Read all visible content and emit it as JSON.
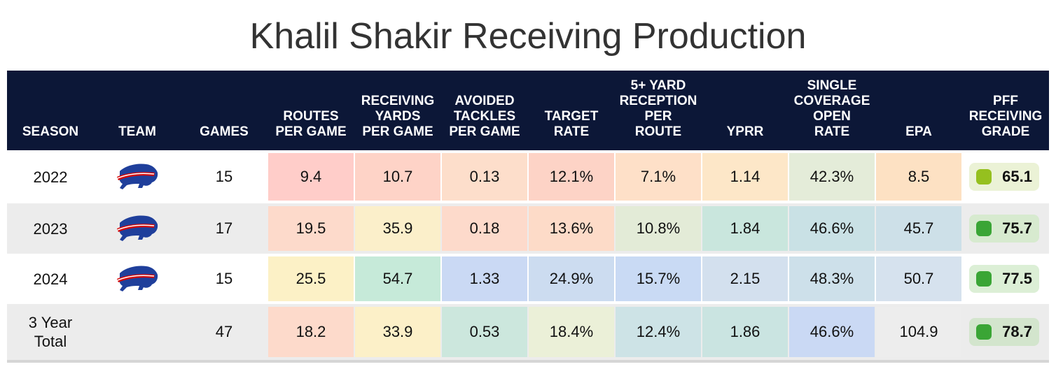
{
  "chart_data": {
    "type": "table",
    "title": "Khalil Shakir Receiving Production",
    "columns": [
      {
        "key": "season",
        "label": "SEASON"
      },
      {
        "key": "team",
        "label": "TEAM"
      },
      {
        "key": "games",
        "label": "GAMES"
      },
      {
        "key": "routes",
        "label": "ROUTES\nPER GAME"
      },
      {
        "key": "yards",
        "label": "RECEIVING\nYARDS\nPER GAME"
      },
      {
        "key": "avoided",
        "label": "AVOIDED\nTACKLES\nPER GAME"
      },
      {
        "key": "target",
        "label": "TARGET\nRATE"
      },
      {
        "key": "fiveplus",
        "label": "5+ YARD\nRECEPTION\nPER\nROUTE"
      },
      {
        "key": "yprr",
        "label": "YPRR"
      },
      {
        "key": "single",
        "label": "SINGLE\nCOVERAGE\nOPEN\nRATE"
      },
      {
        "key": "epa",
        "label": "EPA"
      },
      {
        "key": "grade",
        "label": "PFF\nRECEIVING\nGRADE"
      }
    ],
    "rows": [
      {
        "season": "2022",
        "team_logo": "bills-logo",
        "games": "15",
        "values": [
          "9.4",
          "10.7",
          "0.13",
          "12.1%",
          "7.1%",
          "1.14",
          "42.3%",
          "8.5"
        ],
        "colors": [
          "#ffcdc9",
          "#fed3c7",
          "#fddecb",
          "#fdd3c6",
          "#fee0c8",
          "#fde7c8",
          "#e4ecd9",
          "#fde1c3"
        ],
        "grade": "65.1",
        "grade_color": "#95c01f",
        "grade_bg": "#ebf2d6"
      },
      {
        "season": "2023",
        "team_logo": "bills-logo",
        "games": "17",
        "values": [
          "19.5",
          "35.9",
          "0.18",
          "13.6%",
          "10.8%",
          "1.84",
          "46.6%",
          "45.7"
        ],
        "colors": [
          "#fddacb",
          "#fbefca",
          "#fddacb",
          "#fddbc8",
          "#e3ebd7",
          "#c9e6dd",
          "#c9e1e5",
          "#cde0e8"
        ],
        "grade": "75.7",
        "grade_color": "#3aa535",
        "grade_bg": "#d7eacf"
      },
      {
        "season": "2024",
        "team_logo": "bills-logo",
        "games": "15",
        "values": [
          "25.5",
          "54.7",
          "1.33",
          "24.9%",
          "15.7%",
          "2.15",
          "48.3%",
          "50.7"
        ],
        "colors": [
          "#fcf1c6",
          "#c6ead9",
          "#cad9f4",
          "#ccdcf0",
          "#c9daf4",
          "#d3e0ee",
          "#cde0ea",
          "#d6e2ee"
        ],
        "grade": "77.5",
        "grade_color": "#3aa535",
        "grade_bg": "#dcefd6"
      },
      {
        "season": "3 Year\nTotal",
        "team_logo": "",
        "games": "47",
        "values": [
          "18.2",
          "33.9",
          "0.53",
          "18.4%",
          "12.4%",
          "1.86",
          "46.6%",
          "104.9"
        ],
        "colors": [
          "#fddacb",
          "#fcf0c8",
          "#cce7dd",
          "#ebf0d8",
          "#cde3e6",
          "#cae4e1",
          "#cad9f4",
          "#ededed"
        ],
        "grade": "78.7",
        "grade_color": "#3aa535",
        "grade_bg": "#d3e5cd"
      }
    ],
    "row_backgrounds": [
      "#ffffff",
      "#ececec",
      "#ffffff",
      "#ececec"
    ]
  }
}
